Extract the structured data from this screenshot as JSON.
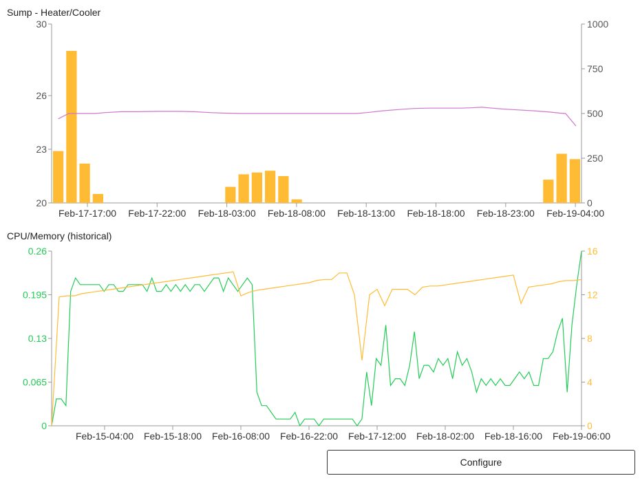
{
  "configure_button_label": "Configure",
  "chart_data": [
    {
      "type": "bar",
      "title": "Sump - Heater/Cooler",
      "left_axis": {
        "ticks": [
          20,
          23,
          26,
          30
        ],
        "range": [
          20,
          30
        ],
        "color": "#555555"
      },
      "right_axis": {
        "ticks": [
          0,
          250,
          500,
          750,
          1000
        ],
        "range": [
          0,
          1000
        ],
        "color": "#555555"
      },
      "x_tick_labels": [
        "Feb-17-17:00",
        "Feb-17-22:00",
        "Feb-18-03:00",
        "Feb-18-08:00",
        "Feb-18-13:00",
        "Feb-18-18:00",
        "Feb-18-23:00",
        "Feb-19-04:00"
      ],
      "bars": {
        "color": "#ffbb33",
        "axis": "right",
        "values": [
          290,
          850,
          220,
          50,
          0,
          0,
          0,
          0,
          0,
          0,
          0,
          0,
          0,
          90,
          160,
          170,
          180,
          150,
          20,
          0,
          0,
          0,
          0,
          0,
          0,
          0,
          0,
          0,
          0,
          0,
          0,
          0,
          0,
          0,
          0,
          0,
          0,
          130,
          275,
          245
        ]
      },
      "line": {
        "color": "#cc77cc",
        "axis": "left",
        "values": [
          24.7,
          25.0,
          25.0,
          25.0,
          25.05,
          25.1,
          25.1,
          25.12,
          25.12,
          25.1,
          25.05,
          25.02,
          25.0,
          25.0,
          25.0,
          25.0,
          25.0,
          25.0,
          25.0,
          25.05,
          25.15,
          25.22,
          25.28,
          25.3,
          25.3,
          25.3,
          25.32,
          25.35,
          25.3,
          25.25,
          25.2,
          25.15,
          25.08,
          25.02,
          25.0,
          24.3
        ],
        "x_fraction": [
          0.01,
          0.03,
          0.05,
          0.08,
          0.1,
          0.13,
          0.16,
          0.2,
          0.24,
          0.27,
          0.3,
          0.33,
          0.36,
          0.4,
          0.44,
          0.48,
          0.52,
          0.55,
          0.58,
          0.6,
          0.63,
          0.66,
          0.69,
          0.72,
          0.75,
          0.78,
          0.8,
          0.82,
          0.84,
          0.86,
          0.89,
          0.92,
          0.95,
          0.97,
          0.98,
          1.0
        ]
      }
    },
    {
      "type": "line",
      "title": "CPU/Memory (historical)",
      "left_axis": {
        "ticks": [
          0,
          0.065,
          0.13,
          0.195,
          0.26
        ],
        "range": [
          0,
          0.26
        ],
        "color": "#22cc55"
      },
      "right_axis": {
        "ticks": [
          0,
          4,
          8,
          12,
          16
        ],
        "range": [
          0,
          16
        ],
        "color": "#ffbb33"
      },
      "x_tick_labels": [
        "Feb-15-04:00",
        "Feb-15-18:00",
        "Feb-16-08:00",
        "Feb-16-22:00",
        "Feb-17-12:00",
        "Feb-18-02:00",
        "Feb-18-16:00",
        "Feb-19-06:00"
      ],
      "series": [
        {
          "axis": "left",
          "color": "#22cc55",
          "values": [
            0,
            0.04,
            0.04,
            0.03,
            0.2,
            0.22,
            0.21,
            0.21,
            0.21,
            0.21,
            0.21,
            0.2,
            0.21,
            0.21,
            0.2,
            0.2,
            0.21,
            0.21,
            0.21,
            0.21,
            0.2,
            0.22,
            0.2,
            0.2,
            0.21,
            0.2,
            0.21,
            0.2,
            0.21,
            0.2,
            0.21,
            0.21,
            0.2,
            0.21,
            0.22,
            0.22,
            0.2,
            0.22,
            0.21,
            0.2,
            0.21,
            0.22,
            0.21,
            0.05,
            0.03,
            0.03,
            0.02,
            0.01,
            0.01,
            0.01,
            0.01,
            0.02,
            0,
            0.01,
            0.01,
            0.01,
            0,
            0.01,
            0.01,
            0.01,
            0.01,
            0.01,
            0.01,
            0.01,
            0,
            0.01,
            0.08,
            0.03,
            0.1,
            0.09,
            0.15,
            0.06,
            0.07,
            0.07,
            0.06,
            0.09,
            0.14,
            0.07,
            0.09,
            0.09,
            0.08,
            0.1,
            0.09,
            0.1,
            0.07,
            0.11,
            0.09,
            0.1,
            0.08,
            0.05,
            0.07,
            0.06,
            0.07,
            0.06,
            0.07,
            0.06,
            0.06,
            0.07,
            0.08,
            0.07,
            0.08,
            0.06,
            0.06,
            0.1,
            0.1,
            0.11,
            0.14,
            0.16,
            0.05,
            0.15,
            0.21,
            0.26
          ]
        },
        {
          "axis": "right",
          "color": "#ffbb33",
          "values": [
            0,
            11.8,
            11.9,
            11.9,
            12.1,
            12.2,
            12.3,
            12.4,
            12.5,
            12.6,
            12.7,
            12.8,
            12.9,
            13.0,
            13.1,
            13.2,
            13.3,
            13.4,
            13.5,
            13.6,
            13.7,
            13.8,
            13.9,
            14.0,
            14.1,
            11.9,
            12.2,
            12.4,
            12.5,
            12.6,
            12.7,
            12.8,
            12.9,
            13.0,
            13.1,
            13.3,
            13.4,
            13.4,
            14.0,
            14.0,
            12.0,
            6.0,
            12.0,
            12.5,
            11.0,
            12.5,
            12.5,
            12.5,
            12.0,
            12.7,
            12.8,
            12.8,
            12.9,
            13.0,
            13.1,
            13.2,
            13.3,
            13.4,
            13.5,
            13.6,
            13.7,
            13.8,
            11.2,
            12.7,
            12.8,
            12.9,
            13.0,
            13.2,
            13.3,
            13.3,
            13.4
          ]
        }
      ]
    }
  ]
}
